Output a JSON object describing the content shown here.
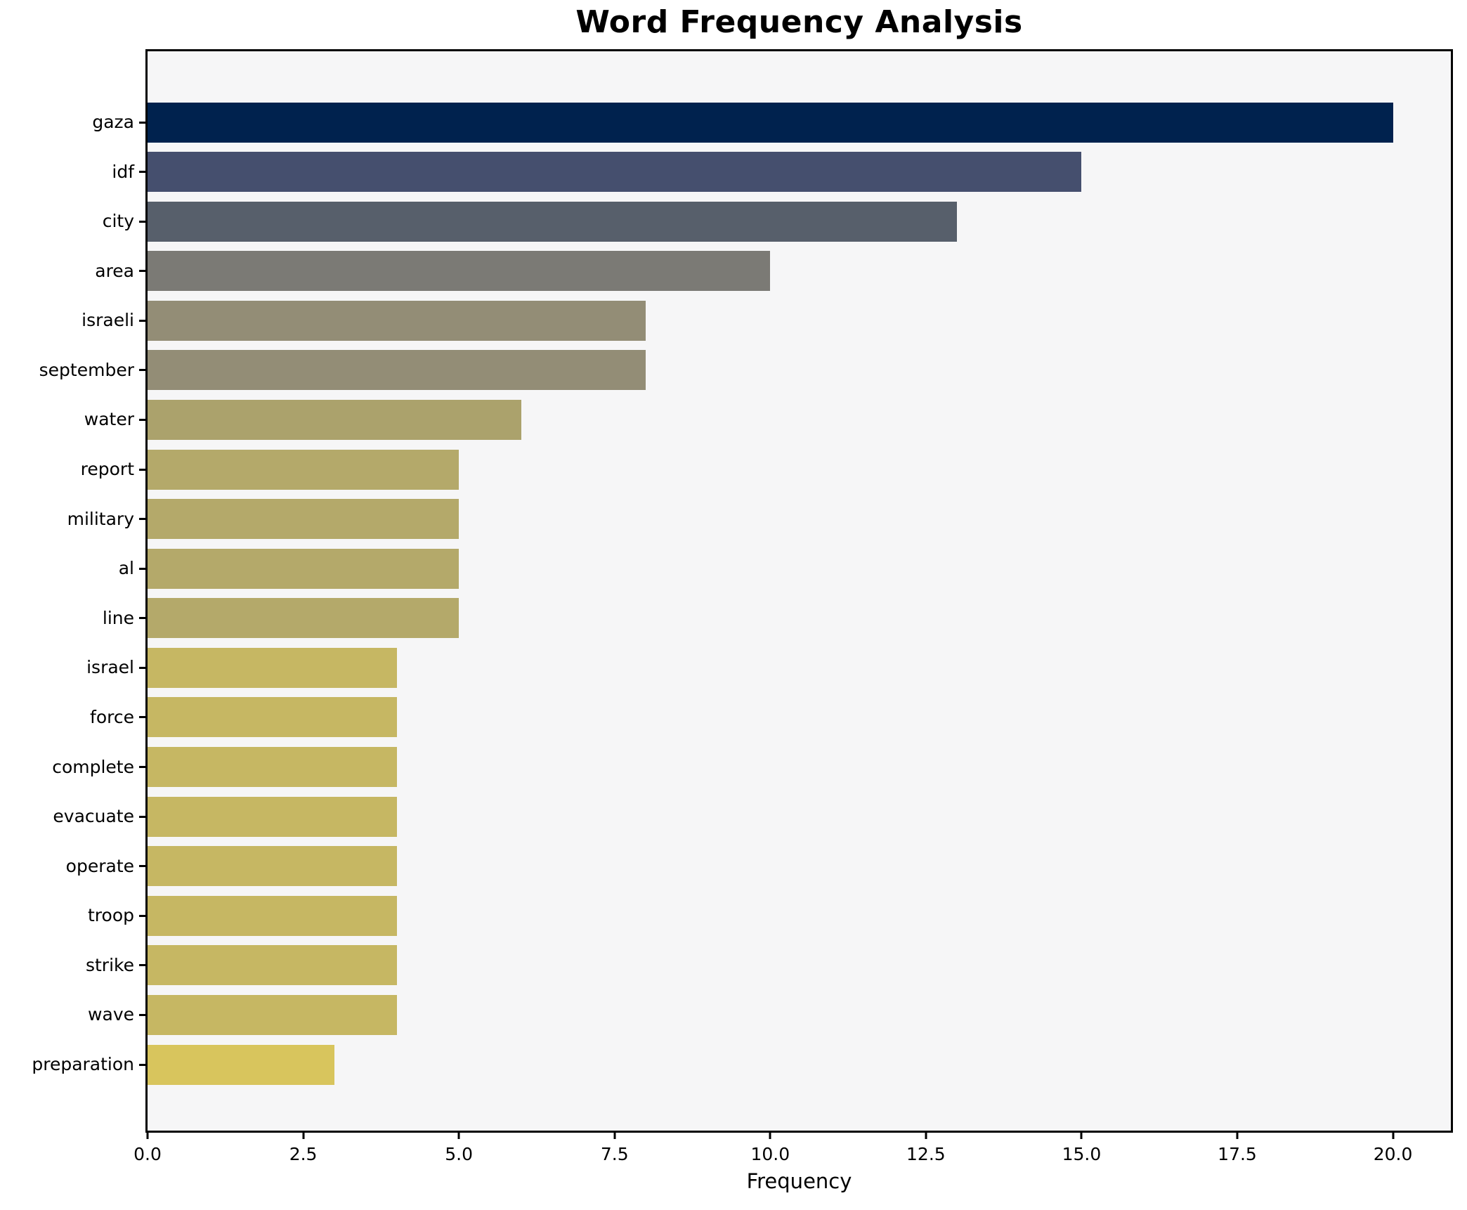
{
  "title": "Word Frequency Analysis",
  "chart_data": {
    "type": "bar",
    "orientation": "horizontal",
    "title": "Word Frequency Analysis",
    "xlabel": "Frequency",
    "ylabel": "",
    "categories": [
      "gaza",
      "idf",
      "city",
      "area",
      "israeli",
      "september",
      "water",
      "report",
      "military",
      "al",
      "line",
      "israel",
      "force",
      "complete",
      "evacuate",
      "operate",
      "troop",
      "strike",
      "wave",
      "preparation"
    ],
    "values": [
      20,
      15,
      13,
      10,
      8,
      8,
      6,
      5,
      5,
      5,
      5,
      4,
      4,
      4,
      4,
      4,
      4,
      4,
      4,
      3
    ],
    "bar_colors": [
      "#00224e",
      "#454f6e",
      "#575f6b",
      "#7b7a75",
      "#938d76",
      "#938d76",
      "#aba26c",
      "#b4a96a",
      "#b4a96a",
      "#b4a96a",
      "#b4a96a",
      "#c6b763",
      "#c6b763",
      "#c6b763",
      "#c6b763",
      "#c6b763",
      "#c6b763",
      "#c6b763",
      "#c6b763",
      "#d8c55d"
    ],
    "xticks": [
      0,
      2.5,
      5,
      7.5,
      10,
      12.5,
      15,
      17.5,
      20
    ],
    "xtick_labels": [
      "0.0",
      "2.5",
      "5.0",
      "7.5",
      "10.0",
      "12.5",
      "15.0",
      "17.5",
      "20.0"
    ],
    "xlim": [
      0,
      20.93
    ],
    "grid": false,
    "legend": null,
    "plot_background": "#f6f6f7",
    "spine_color": "#000000"
  }
}
